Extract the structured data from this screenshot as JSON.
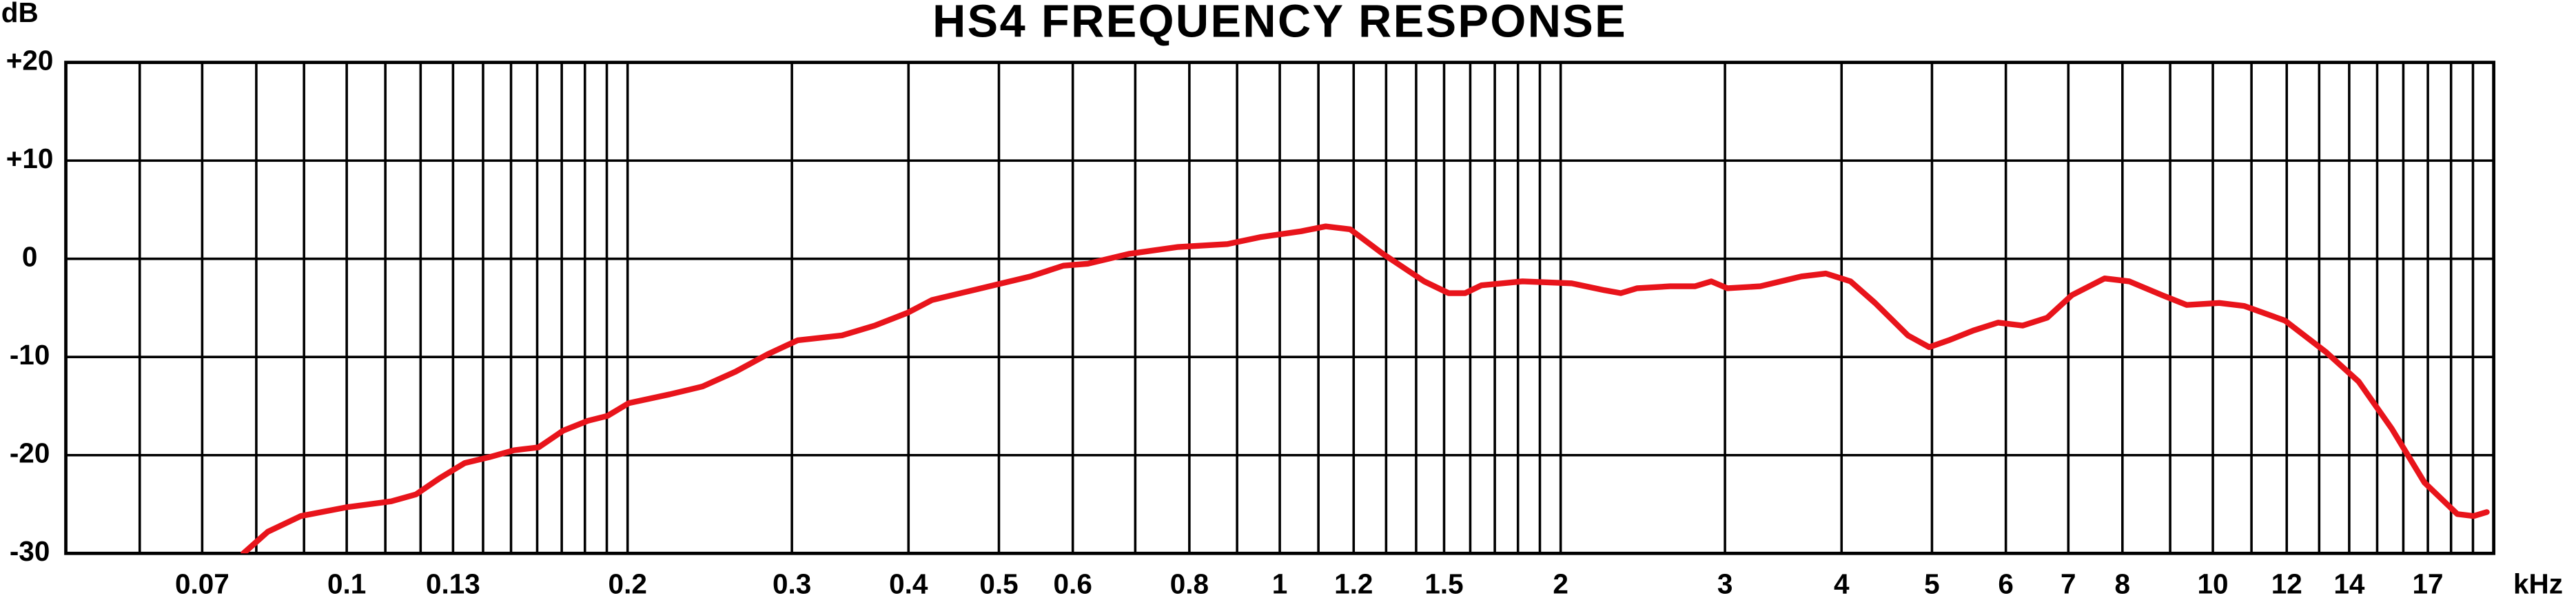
{
  "chart_data": {
    "type": "line",
    "title": "HS4 FREQUENCY RESPONSE",
    "y_label": "dB",
    "x_label": "kHz",
    "log_x": true,
    "grid": true,
    "xlim": [
      0.05,
      20
    ],
    "ylim": [
      -30,
      20
    ],
    "xticks": [
      0.07,
      0.1,
      0.13,
      0.2,
      0.3,
      0.4,
      0.5,
      0.6,
      0.8,
      1,
      1.2,
      1.5,
      2,
      3,
      4,
      5,
      6,
      7,
      8,
      10,
      12,
      14,
      17
    ],
    "xgrid": [
      0.06,
      0.07,
      0.08,
      0.09,
      0.1,
      0.11,
      0.12,
      0.13,
      0.14,
      0.15,
      0.16,
      0.17,
      0.18,
      0.19,
      0.2,
      0.3,
      0.4,
      0.5,
      0.6,
      0.7,
      0.8,
      0.9,
      1,
      1.1,
      1.2,
      1.3,
      1.4,
      1.5,
      1.6,
      1.7,
      1.8,
      1.9,
      2,
      3,
      4,
      5,
      6,
      7,
      8,
      9,
      10,
      11,
      12,
      13,
      14,
      15,
      16,
      17,
      18,
      19
    ],
    "yticks": [
      {
        "value": 20,
        "label": "+20"
      },
      {
        "value": 10,
        "label": "+10"
      },
      0,
      -10,
      -20,
      -30
    ],
    "series": [
      {
        "color": "#e8141b",
        "x": [
          0.0775,
          0.0823,
          0.0893,
          0.1,
          0.1116,
          0.1186,
          0.126,
          0.1338,
          0.1422,
          0.1511,
          0.1606,
          0.1706,
          0.1813,
          0.1903,
          0.2006,
          0.222,
          0.2407,
          0.261,
          0.2829,
          0.3043,
          0.3395,
          0.3681,
          0.3991,
          0.4239,
          0.4787,
          0.5405,
          0.5862,
          0.6227,
          0.6892,
          0.7781,
          0.8786,
          0.9526,
          1.054,
          1.12,
          1.19,
          1.29,
          1.428,
          1.517,
          1.58,
          1.645,
          1.82,
          2.055,
          2.228,
          2.32,
          2.416,
          2.62,
          2.785,
          2.9,
          3.018,
          3.273,
          3.622,
          3.848,
          4.09,
          4.345,
          4.711,
          4.966,
          5.212,
          5.539,
          5.886,
          6.254,
          6.645,
          7.062,
          7.656,
          8.136,
          8.822,
          9.373,
          10.16,
          10.8,
          11.95,
          13.22,
          14.33,
          15.55,
          16.86,
          18.28,
          19.03,
          19.66
        ],
        "values": [
          -30,
          -27.8,
          -26.2,
          -25.3,
          -24.7,
          -24,
          -22.3,
          -20.8,
          -20.2,
          -19.5,
          -19.2,
          -17.5,
          -16.5,
          -16,
          -14.7,
          -13.8,
          -13,
          -11.5,
          -9.7,
          -8.3,
          -7.8,
          -6.8,
          -5.5,
          -4.2,
          -3,
          -1.8,
          -0.7,
          -0.5,
          0.5,
          1.2,
          1.5,
          2.2,
          2.8,
          3.3,
          3,
          0.5,
          -2.3,
          -3.5,
          -3.5,
          -2.7,
          -2.3,
          -2.5,
          -3.2,
          -3.5,
          -3,
          -2.8,
          -2.8,
          -2.3,
          -3,
          -2.8,
          -1.8,
          -1.5,
          -2.3,
          -4.5,
          -7.8,
          -9,
          -8.3,
          -7.3,
          -6.5,
          -6.8,
          -6,
          -3.7,
          -2,
          -2.3,
          -3.7,
          -4.7,
          -4.5,
          -4.8,
          -6.3,
          -9.5,
          -12.5,
          -17.3,
          -22.8,
          -26,
          -26.2,
          -25.8
        ]
      }
    ]
  }
}
